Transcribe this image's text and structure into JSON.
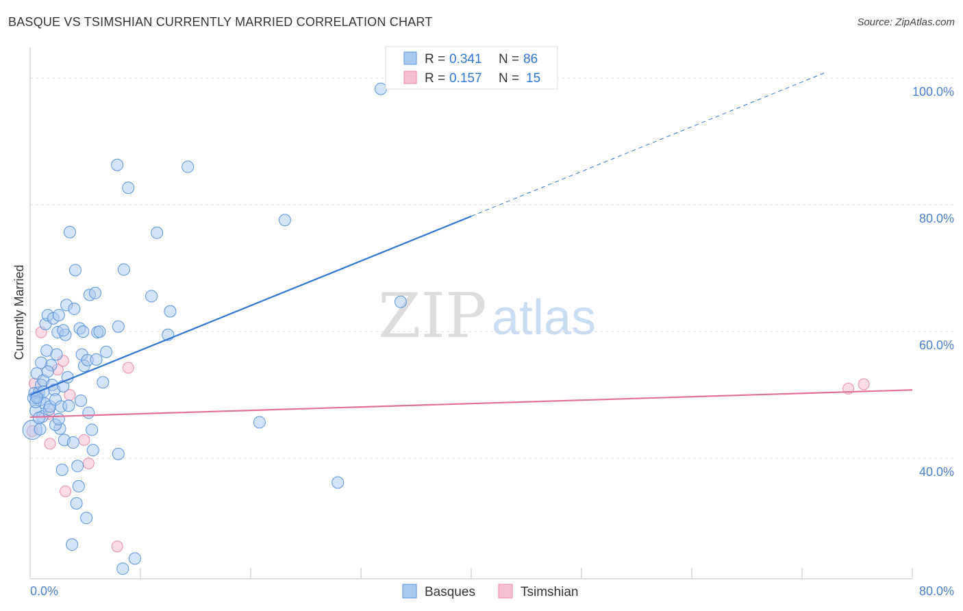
{
  "header": {
    "title": "BASQUE VS TSIMSHIAN CURRENTLY MARRIED CORRELATION CHART",
    "source": "Source: ZipAtlas.com"
  },
  "watermark": {
    "zip": "ZIP",
    "atlas": "atlas"
  },
  "colors": {
    "blue_fill": "#a9c8f0",
    "blue_stroke": "#5b93dc",
    "blue_line": "#2f74d0",
    "pink_fill": "#f7bfd1",
    "pink_stroke": "#e88aaa",
    "pink_line": "#e0709a",
    "grid": "#dddddd",
    "tick_text": "#4a7fd0"
  },
  "legend_top": {
    "rows": [
      {
        "r_label": "R = ",
        "r_value": "0.341",
        "n_label": "N = ",
        "n_value": "86"
      },
      {
        "r_label": "R = ",
        "r_value": "0.157",
        "n_label": "N = ",
        "n_value": "15"
      }
    ]
  },
  "legend_bottom": {
    "items": [
      "Basques",
      "Tsimshian"
    ]
  },
  "chart_data": {
    "type": "scatter",
    "title": "BASQUE VS TSIMSHIAN CURRENTLY MARRIED CORRELATION CHART",
    "xlabel": "",
    "ylabel": "Currently Married",
    "xlim": [
      0,
      80
    ],
    "ylim": [
      21,
      104
    ],
    "x_tick_labels": [
      "0.0%",
      "80.0%"
    ],
    "y_ticks": [
      40,
      60,
      80,
      100
    ],
    "y_tick_labels": [
      "40.0%",
      "60.0%",
      "80.0%",
      "100.0%"
    ],
    "grid": true,
    "series": [
      {
        "name": "Basques",
        "R": 0.341,
        "N": 86,
        "trend": {
          "x1": 0,
          "y1": 50.0,
          "x2": 40,
          "y2": 78.2,
          "dash_to_x": 72,
          "dash_to_y": 100.8
        },
        "points": [
          [
            0.2,
            44.5
          ],
          [
            0.3,
            49.5
          ],
          [
            0.4,
            50.3
          ],
          [
            0.5,
            47.5
          ],
          [
            0.6,
            53.4
          ],
          [
            0.7,
            49.8
          ],
          [
            0.8,
            50.4
          ],
          [
            0.9,
            49.2
          ],
          [
            1.0,
            51.6
          ],
          [
            1.1,
            46.6
          ],
          [
            1.2,
            52.3
          ],
          [
            1.3,
            48.7
          ],
          [
            1.4,
            61.2
          ],
          [
            1.5,
            57.0
          ],
          [
            1.6,
            62.6
          ],
          [
            1.7,
            47.7
          ],
          [
            1.8,
            48.2
          ],
          [
            1.9,
            54.7
          ],
          [
            2.0,
            51.6
          ],
          [
            2.1,
            62.1
          ],
          [
            2.2,
            50.8
          ],
          [
            2.3,
            49.3
          ],
          [
            2.4,
            56.4
          ],
          [
            2.5,
            59.9
          ],
          [
            2.6,
            62.6
          ],
          [
            2.7,
            44.7
          ],
          [
            2.8,
            48.2
          ],
          [
            2.9,
            38.2
          ],
          [
            3.0,
            51.4
          ],
          [
            3.1,
            42.9
          ],
          [
            3.2,
            59.5
          ],
          [
            3.3,
            64.2
          ],
          [
            3.4,
            52.8
          ],
          [
            3.5,
            48.3
          ],
          [
            3.6,
            75.7
          ],
          [
            3.8,
            26.4
          ],
          [
            4.0,
            63.6
          ],
          [
            4.1,
            69.7
          ],
          [
            4.3,
            38.8
          ],
          [
            4.5,
            60.5
          ],
          [
            4.6,
            49.1
          ],
          [
            4.7,
            56.4
          ],
          [
            4.8,
            60.0
          ],
          [
            4.9,
            54.6
          ],
          [
            5.1,
            30.6
          ],
          [
            5.2,
            55.5
          ],
          [
            5.3,
            47.2
          ],
          [
            5.4,
            65.8
          ],
          [
            5.6,
            44.5
          ],
          [
            5.7,
            41.3
          ],
          [
            5.9,
            66.1
          ],
          [
            6.0,
            55.6
          ],
          [
            6.1,
            59.9
          ],
          [
            6.3,
            60.0
          ],
          [
            6.6,
            52.0
          ],
          [
            6.9,
            56.8
          ],
          [
            7.9,
            86.3
          ],
          [
            8.0,
            60.8
          ],
          [
            8.0,
            40.7
          ],
          [
            8.4,
            22.6
          ],
          [
            8.5,
            69.8
          ],
          [
            8.9,
            82.7
          ],
          [
            9.5,
            24.2
          ],
          [
            11.0,
            65.6
          ],
          [
            11.5,
            75.6
          ],
          [
            12.7,
            63.2
          ],
          [
            12.5,
            59.5
          ],
          [
            14.3,
            86.0
          ],
          [
            20.8,
            45.7
          ],
          [
            23.1,
            77.6
          ],
          [
            27.9,
            36.2
          ],
          [
            31.8,
            98.3
          ],
          [
            33.6,
            64.7
          ],
          [
            4.4,
            35.6
          ],
          [
            4.2,
            32.9
          ],
          [
            1.0,
            55.1
          ],
          [
            0.8,
            46.4
          ],
          [
            2.3,
            45.3
          ],
          [
            3.9,
            42.5
          ],
          [
            1.2,
            50.5
          ],
          [
            0.5,
            48.9
          ],
          [
            1.6,
            53.7
          ],
          [
            2.6,
            46.2
          ],
          [
            0.9,
            44.6
          ],
          [
            0.6,
            49.6
          ],
          [
            3.0,
            60.2
          ]
        ]
      },
      {
        "name": "Tsimshian",
        "R": 0.157,
        "N": 15,
        "trend": {
          "x1": 0,
          "y1": 46.5,
          "x2": 80,
          "y2": 50.8
        },
        "points": [
          [
            0.2,
            44.3
          ],
          [
            0.4,
            51.8
          ],
          [
            1.0,
            59.9
          ],
          [
            1.7,
            47.0
          ],
          [
            1.8,
            42.3
          ],
          [
            2.5,
            54.0
          ],
          [
            3.0,
            55.4
          ],
          [
            3.2,
            34.8
          ],
          [
            3.6,
            50.0
          ],
          [
            4.9,
            42.9
          ],
          [
            5.3,
            39.2
          ],
          [
            7.9,
            26.1
          ],
          [
            8.9,
            54.3
          ],
          [
            74.2,
            51.0
          ],
          [
            75.6,
            51.7
          ]
        ]
      }
    ]
  }
}
